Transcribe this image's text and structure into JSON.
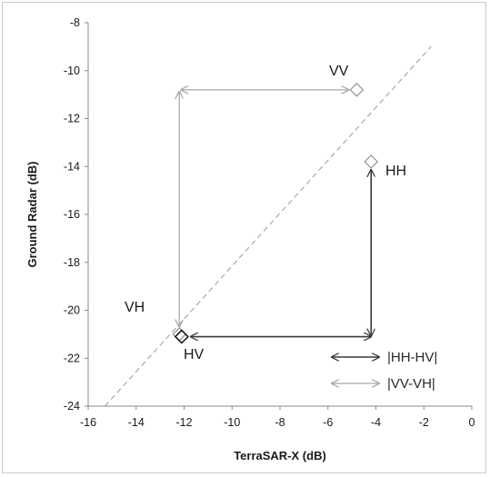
{
  "chart_data": {
    "type": "scatter",
    "xlabel": "TerraSAR-X (dB)",
    "ylabel": "Ground Radar (dB)",
    "xlim": [
      -16,
      0
    ],
    "ylim": [
      -24,
      -8
    ],
    "xticks": [
      "-16",
      "-14",
      "-12",
      "-10",
      "-8",
      "-6",
      "-4",
      "-2",
      "0"
    ],
    "yticks": [
      "-8",
      "-10",
      "-12",
      "-14",
      "-16",
      "-18",
      "-20",
      "-22",
      "-24"
    ],
    "points": [
      {
        "label": "VV",
        "x": -4.8,
        "y": -10.8
      },
      {
        "label": "HH",
        "x": -4.2,
        "y": -13.8
      },
      {
        "label": "VH",
        "x": -12.2,
        "y": -21.0
      },
      {
        "label": "HV",
        "x": -12.1,
        "y": -21.1
      }
    ],
    "reference_line": {
      "type": "1:1",
      "style": "dashed"
    },
    "arrows": [
      {
        "legend": "|HH-HV|",
        "color": "#3a3a3a"
      },
      {
        "legend": "|VV-VH|",
        "color": "#a8a8a8"
      }
    ],
    "grid": false,
    "legend_position": "bottom-right"
  }
}
